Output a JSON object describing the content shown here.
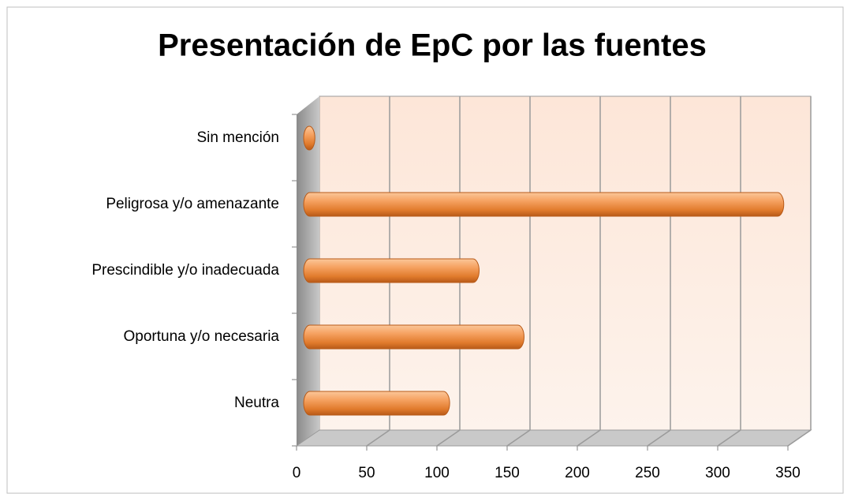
{
  "chart_data": {
    "type": "bar",
    "orientation": "horizontal",
    "title": "Presentación de EpC por las fuentes",
    "categories": [
      "Neutra",
      "Oportuna y/o necesaria",
      "Prescindible y/o inadecuada",
      "Peligrosa y/o amenazante",
      "Sin mención"
    ],
    "values": [
      104,
      157,
      125,
      342,
      8
    ],
    "color": "#f0904a",
    "xlim": [
      0,
      350
    ],
    "xticks": [
      0,
      50,
      100,
      150,
      200,
      250,
      300,
      350
    ],
    "grid": true
  }
}
